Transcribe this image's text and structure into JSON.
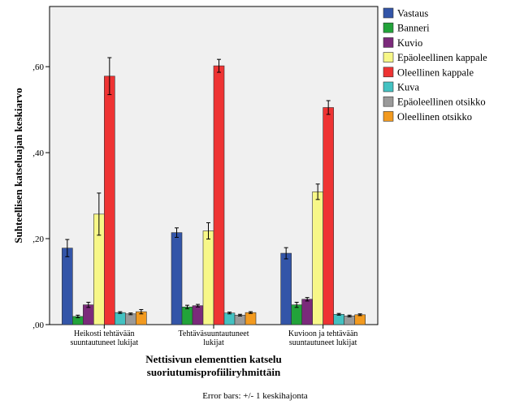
{
  "chart_data": {
    "type": "bar",
    "xlabel": [
      "Nettisivun elementtien katselu",
      "suoriutumisprofiiliryhmittäin"
    ],
    "ylabel": "Suhteellisen katseluajan keskiarvo",
    "ylim": [
      0,
      0.74
    ],
    "yticks": [
      {
        "value": 0.0,
        "label": ",00"
      },
      {
        "value": 0.2,
        "label": ",20"
      },
      {
        "value": 0.4,
        "label": ",40"
      },
      {
        "value": 0.6,
        "label": ",60"
      }
    ],
    "grid": false,
    "legend_placement": "right",
    "categories": [
      [
        "Heikosti tehtävään",
        "suuntautuneet lukijat"
      ],
      [
        "Tehtäväsuuntautuneet",
        "lukijat"
      ],
      [
        "Kuvioon ja tehtävään",
        "suuntautuneet lukijat"
      ]
    ],
    "series": [
      {
        "name": "Vastaus",
        "color": "#3355a8",
        "values": [
          0.178,
          0.214,
          0.166
        ],
        "errors": [
          0.02,
          0.011,
          0.013
        ]
      },
      {
        "name": "Banneri",
        "color": "#22a33a",
        "values": [
          0.019,
          0.041,
          0.046
        ],
        "errors": [
          0.003,
          0.004,
          0.006
        ]
      },
      {
        "name": "Kuvio",
        "color": "#7b2a7b",
        "values": [
          0.046,
          0.044,
          0.059
        ],
        "errors": [
          0.006,
          0.003,
          0.004
        ]
      },
      {
        "name": "Epäoleellinen kappale",
        "color": "#f7f788",
        "values": [
          0.257,
          0.218,
          0.309
        ],
        "errors": [
          0.049,
          0.019,
          0.018
        ]
      },
      {
        "name": "Oleellinen kappale",
        "color": "#ee3333",
        "values": [
          0.578,
          0.602,
          0.505
        ],
        "errors": [
          0.043,
          0.015,
          0.016
        ]
      },
      {
        "name": "Kuva",
        "color": "#44c2c2",
        "values": [
          0.028,
          0.027,
          0.024
        ],
        "errors": [
          0.002,
          0.002,
          0.002
        ]
      },
      {
        "name": "Epäoleellinen otsikko",
        "color": "#9a9a9a",
        "values": [
          0.025,
          0.022,
          0.02
        ],
        "errors": [
          0.002,
          0.002,
          0.002
        ]
      },
      {
        "name": "Oleellinen otsikko",
        "color": "#f29a1f",
        "values": [
          0.03,
          0.028,
          0.023
        ],
        "errors": [
          0.005,
          0.002,
          0.002
        ]
      }
    ],
    "footnote": "Error bars: +/- 1 keskihajonta"
  }
}
